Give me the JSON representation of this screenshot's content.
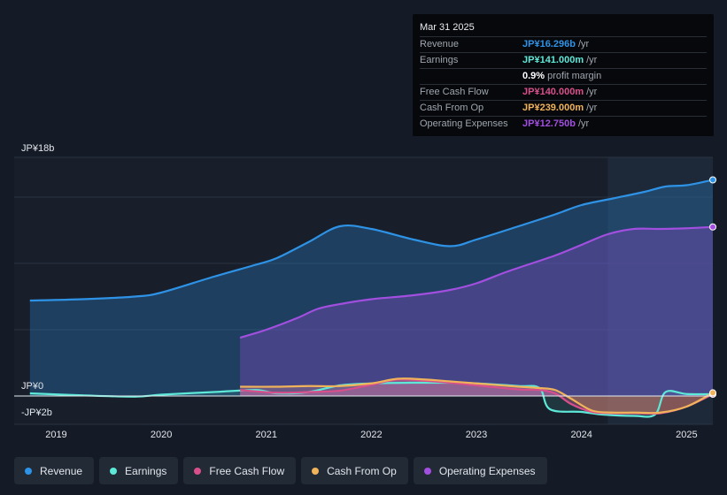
{
  "chart_data": {
    "type": "area",
    "currency_labels": [
      "JP¥18b",
      "JP¥0",
      "-JP¥2b"
    ],
    "ylim": [
      -2,
      18
    ],
    "xlim": [
      2018.6,
      2025.25
    ],
    "x_ticks": [
      "2019",
      "2020",
      "2021",
      "2022",
      "2023",
      "2024",
      "2025"
    ],
    "tooltip": {
      "date": "Mar 31 2025",
      "rows": [
        {
          "label": "Revenue",
          "value": "JP¥16.296b",
          "unit": "/yr",
          "color": "#2e93e6"
        },
        {
          "label": "Earnings",
          "value": "JP¥141.000m",
          "unit": "/yr",
          "color": "#5ee8d8"
        },
        {
          "label": "",
          "value": "0.9%",
          "unit": "profit margin",
          "color": "#ffffff"
        },
        {
          "label": "Free Cash Flow",
          "value": "JP¥140.000m",
          "unit": "/yr",
          "color": "#d94f8c"
        },
        {
          "label": "Cash From Op",
          "value": "JP¥239.000m",
          "unit": "/yr",
          "color": "#f0b35a"
        },
        {
          "label": "Operating Expenses",
          "value": "JP¥12.750b",
          "unit": "/yr",
          "color": "#a24fe0"
        }
      ]
    },
    "series": [
      {
        "name": "Revenue",
        "color": "#2e93e6",
        "x": [
          2018.75,
          2019.25,
          2019.75,
          2020.0,
          2020.5,
          2020.9,
          2021.1,
          2021.4,
          2021.7,
          2022.0,
          2022.4,
          2022.75,
          2023.0,
          2023.4,
          2023.75,
          2024.0,
          2024.3,
          2024.6,
          2024.8,
          2025.0,
          2025.25
        ],
        "y": [
          7.2,
          7.3,
          7.5,
          7.8,
          9.0,
          9.9,
          10.4,
          11.6,
          12.8,
          12.6,
          11.8,
          11.3,
          11.8,
          12.8,
          13.7,
          14.4,
          14.9,
          15.4,
          15.8,
          15.9,
          16.3
        ]
      },
      {
        "name": "Earnings",
        "color": "#5ee8d8",
        "x": [
          2018.75,
          2019.25,
          2019.75,
          2020.0,
          2020.5,
          2020.9,
          2021.1,
          2021.4,
          2021.7,
          2022.0,
          2022.4,
          2022.75,
          2023.0,
          2023.4,
          2023.6,
          2023.7,
          2024.0,
          2024.2,
          2024.5,
          2024.7,
          2024.8,
          2025.0,
          2025.25
        ],
        "y": [
          0.2,
          0.05,
          -0.05,
          0.1,
          0.3,
          0.45,
          0.2,
          0.3,
          0.8,
          0.95,
          1.0,
          1.0,
          0.95,
          0.75,
          0.6,
          -1.0,
          -1.2,
          -1.4,
          -1.5,
          -1.4,
          0.3,
          0.15,
          0.14
        ]
      },
      {
        "name": "Free Cash Flow",
        "color": "#d94f8c",
        "x": [
          2020.75,
          2021.1,
          2021.4,
          2021.7,
          2022.0,
          2022.25,
          2022.5,
          2022.75,
          2023.0,
          2023.4,
          2023.6,
          2023.75,
          2023.9,
          2024.1,
          2024.3,
          2024.5,
          2024.75,
          2025.0,
          2025.25
        ],
        "y": [
          0.45,
          0.25,
          0.3,
          0.4,
          0.85,
          1.25,
          1.15,
          1.0,
          0.8,
          0.5,
          0.45,
          0.2,
          -0.6,
          -1.2,
          -1.3,
          -1.3,
          -1.3,
          -0.8,
          0.14
        ]
      },
      {
        "name": "Cash From Op",
        "color": "#f0b35a",
        "x": [
          2020.75,
          2021.1,
          2021.4,
          2021.7,
          2022.0,
          2022.25,
          2022.5,
          2022.75,
          2023.0,
          2023.4,
          2023.6,
          2023.75,
          2023.9,
          2024.1,
          2024.3,
          2024.5,
          2024.75,
          2025.0,
          2025.25
        ],
        "y": [
          0.7,
          0.7,
          0.75,
          0.75,
          0.95,
          1.3,
          1.25,
          1.1,
          0.95,
          0.7,
          0.6,
          0.45,
          -0.2,
          -1.1,
          -1.25,
          -1.25,
          -1.25,
          -0.8,
          0.24
        ]
      },
      {
        "name": "Operating Expenses",
        "color": "#a24fe0",
        "x": [
          2020.75,
          2021.0,
          2021.3,
          2021.5,
          2021.75,
          2022.0,
          2022.4,
          2022.75,
          2023.0,
          2023.3,
          2023.75,
          2024.0,
          2024.25,
          2024.5,
          2024.75,
          2025.0,
          2025.25
        ],
        "y": [
          4.4,
          5.0,
          5.9,
          6.6,
          7.0,
          7.3,
          7.6,
          8.0,
          8.5,
          9.4,
          10.6,
          11.4,
          12.2,
          12.6,
          12.6,
          12.65,
          12.75
        ]
      }
    ],
    "highlight_from": 2024.25
  },
  "legend": {
    "items": [
      {
        "label": "Revenue",
        "color": "#2e93e6"
      },
      {
        "label": "Earnings",
        "color": "#5ee8d8"
      },
      {
        "label": "Free Cash Flow",
        "color": "#d94f8c"
      },
      {
        "label": "Cash From Op",
        "color": "#f0b35a"
      },
      {
        "label": "Operating Expenses",
        "color": "#a24fe0"
      }
    ]
  }
}
